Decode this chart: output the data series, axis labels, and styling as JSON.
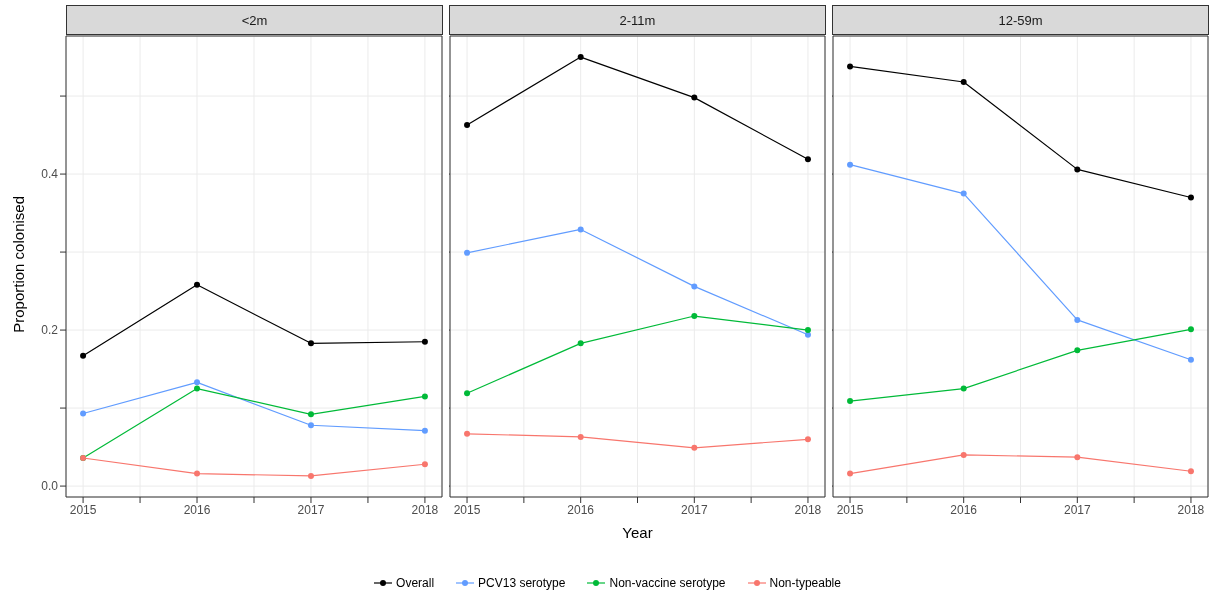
{
  "chart_data": [
    {
      "type": "line",
      "title": "<2m",
      "ylabel": "Proportion colonised",
      "x": [
        2015,
        2016,
        2017,
        2018
      ],
      "marker": "circle",
      "grid": true,
      "legend": "bottom",
      "xlim": [
        2014.85,
        2018.15
      ],
      "xticks": [
        2015,
        {
          "value": 2015.5,
          "label": null
        },
        2016,
        {
          "value": 2016.5,
          "label": null
        },
        2017,
        {
          "value": 2017.5,
          "label": null
        },
        2018
      ],
      "ylim": [
        -0.014,
        0.577
      ],
      "yticks": [
        {
          "value": 0,
          "label": "0.0"
        },
        {
          "value": 0.1,
          "label": null
        },
        {
          "value": 0.2,
          "label": "0.2"
        },
        {
          "value": 0.3,
          "label": null
        },
        {
          "value": 0.4,
          "label": "0.4"
        },
        {
          "value": 0.5,
          "label": null
        }
      ],
      "series": [
        {
          "name": "Overall",
          "color": "#000000",
          "values": [
            0.167,
            0.258,
            0.183,
            0.185
          ]
        },
        {
          "name": "PCV13 serotype",
          "color": "#619cff",
          "values": [
            0.093,
            0.133,
            0.078,
            0.071
          ]
        },
        {
          "name": "Non-vaccine serotype",
          "color": "#00ba38",
          "values": [
            0.036,
            0.125,
            0.092,
            0.115
          ]
        },
        {
          "name": "Non-typeable",
          "color": "#f8766d",
          "values": [
            0.036,
            0.016,
            0.013,
            0.028
          ]
        }
      ]
    },
    {
      "type": "line",
      "title": "2-11m",
      "xlabel": "Year",
      "x": [
        2015,
        2016,
        2017,
        2018
      ],
      "marker": "circle",
      "grid": true,
      "tick_labels": "x",
      "xlim": [
        2014.85,
        2018.15
      ],
      "xticks": [
        2015,
        {
          "value": 2015.5,
          "label": null
        },
        2016,
        {
          "value": 2016.5,
          "label": null
        },
        2017,
        {
          "value": 2017.5,
          "label": null
        },
        2018
      ],
      "ylim": [
        -0.014,
        0.577
      ],
      "yticks": [
        0,
        0.1,
        0.2,
        0.3,
        0.4,
        0.5
      ],
      "series": [
        {
          "color": "#000000",
          "values": [
            0.463,
            0.55,
            0.498,
            0.419
          ]
        },
        {
          "color": "#619cff",
          "values": [
            0.299,
            0.329,
            0.256,
            0.194
          ]
        },
        {
          "color": "#00ba38",
          "values": [
            0.119,
            0.183,
            0.218,
            0.2
          ]
        },
        {
          "color": "#f8766d",
          "values": [
            0.067,
            0.063,
            0.049,
            0.06
          ]
        }
      ]
    },
    {
      "type": "line",
      "title": "12-59m",
      "x": [
        2015,
        2016,
        2017,
        2018
      ],
      "marker": "circle",
      "grid": true,
      "tick_labels": "x",
      "xlim": [
        2014.85,
        2018.15
      ],
      "xticks": [
        2015,
        {
          "value": 2015.5,
          "label": null
        },
        2016,
        {
          "value": 2016.5,
          "label": null
        },
        2017,
        {
          "value": 2017.5,
          "label": null
        },
        2018
      ],
      "ylim": [
        -0.014,
        0.577
      ],
      "yticks": [
        0,
        0.1,
        0.2,
        0.3,
        0.4,
        0.5
      ],
      "series": [
        {
          "color": "#000000",
          "values": [
            0.538,
            0.518,
            0.406,
            0.37
          ]
        },
        {
          "color": "#619cff",
          "values": [
            0.412,
            0.375,
            0.213,
            0.162
          ]
        },
        {
          "color": "#00ba38",
          "values": [
            0.109,
            0.125,
            0.174,
            0.201
          ]
        },
        {
          "color": "#f8766d",
          "values": [
            0.016,
            0.04,
            0.037,
            0.019
          ]
        }
      ]
    }
  ]
}
